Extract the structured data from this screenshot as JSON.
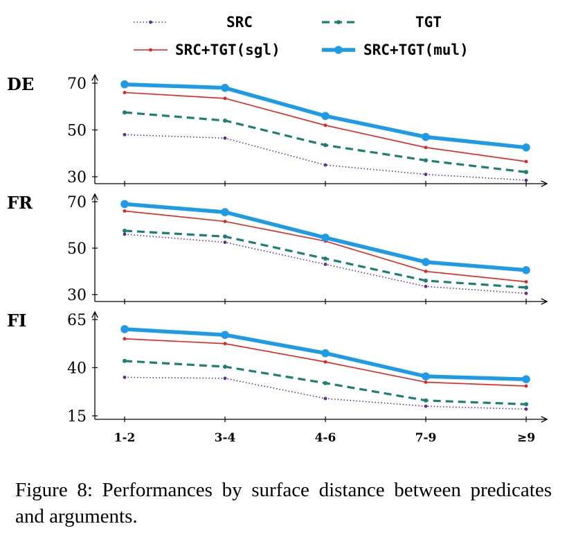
{
  "chart_data": {
    "type": "line",
    "categories": [
      "1-2",
      "3-4",
      "4-6",
      "7-9",
      "≥9"
    ],
    "series_styles": [
      {
        "name": "SRC",
        "color": "#5b2c91",
        "style": "dotted"
      },
      {
        "name": "TGT",
        "color": "#1a7f75",
        "style": "dashed"
      },
      {
        "name": "SRC+TGT(sgl)",
        "color": "#e8201c",
        "style": "solid"
      },
      {
        "name": "SRC+TGT(mul)",
        "color": "#1e9be6",
        "style": "thick"
      }
    ],
    "legend_position": "top",
    "grid": false,
    "panels": [
      {
        "label": "DE",
        "ylim": [
          29,
          71
        ],
        "yticks": [
          30,
          50,
          70
        ],
        "series": [
          {
            "name": "SRC",
            "values": [
              48,
              46.5,
              35,
              31,
              28.5
            ]
          },
          {
            "name": "TGT",
            "values": [
              57.5,
              54,
              43.5,
              37,
              32
            ]
          },
          {
            "name": "SRC+TGT(sgl)",
            "values": [
              66,
              63.5,
              52,
              42.5,
              36.5
            ]
          },
          {
            "name": "SRC+TGT(mul)",
            "values": [
              69.5,
              68,
              56,
              47,
              42.5
            ]
          }
        ]
      },
      {
        "label": "FR",
        "ylim": [
          29,
          71
        ],
        "yticks": [
          30,
          50,
          70
        ],
        "series": [
          {
            "name": "SRC",
            "values": [
              56,
              52.5,
              43,
              33.5,
              30.5
            ]
          },
          {
            "name": "TGT",
            "values": [
              57.5,
              55,
              45.5,
              36,
              33
            ]
          },
          {
            "name": "SRC+TGT(sgl)",
            "values": [
              66,
              61.5,
              53,
              40,
              35.5
            ]
          },
          {
            "name": "SRC+TGT(mul)",
            "values": [
              69,
              65.5,
              54.5,
              44,
              40.5
            ]
          }
        ]
      },
      {
        "label": "FI",
        "ylim": [
          14,
          66
        ],
        "yticks": [
          15,
          40,
          65
        ],
        "series": [
          {
            "name": "SRC",
            "values": [
              35,
              34.5,
              24,
              20,
              18.5
            ]
          },
          {
            "name": "TGT",
            "values": [
              43.5,
              40.5,
              32,
              23,
              21
            ]
          },
          {
            "name": "SRC+TGT(sgl)",
            "values": [
              55,
              52.5,
              43,
              32.5,
              30.5
            ]
          },
          {
            "name": "SRC+TGT(mul)",
            "values": [
              60,
              57,
              47.5,
              35.5,
              34
            ]
          }
        ]
      }
    ]
  },
  "caption": "Figure 8: Performances by surface distance between predicates and arguments."
}
